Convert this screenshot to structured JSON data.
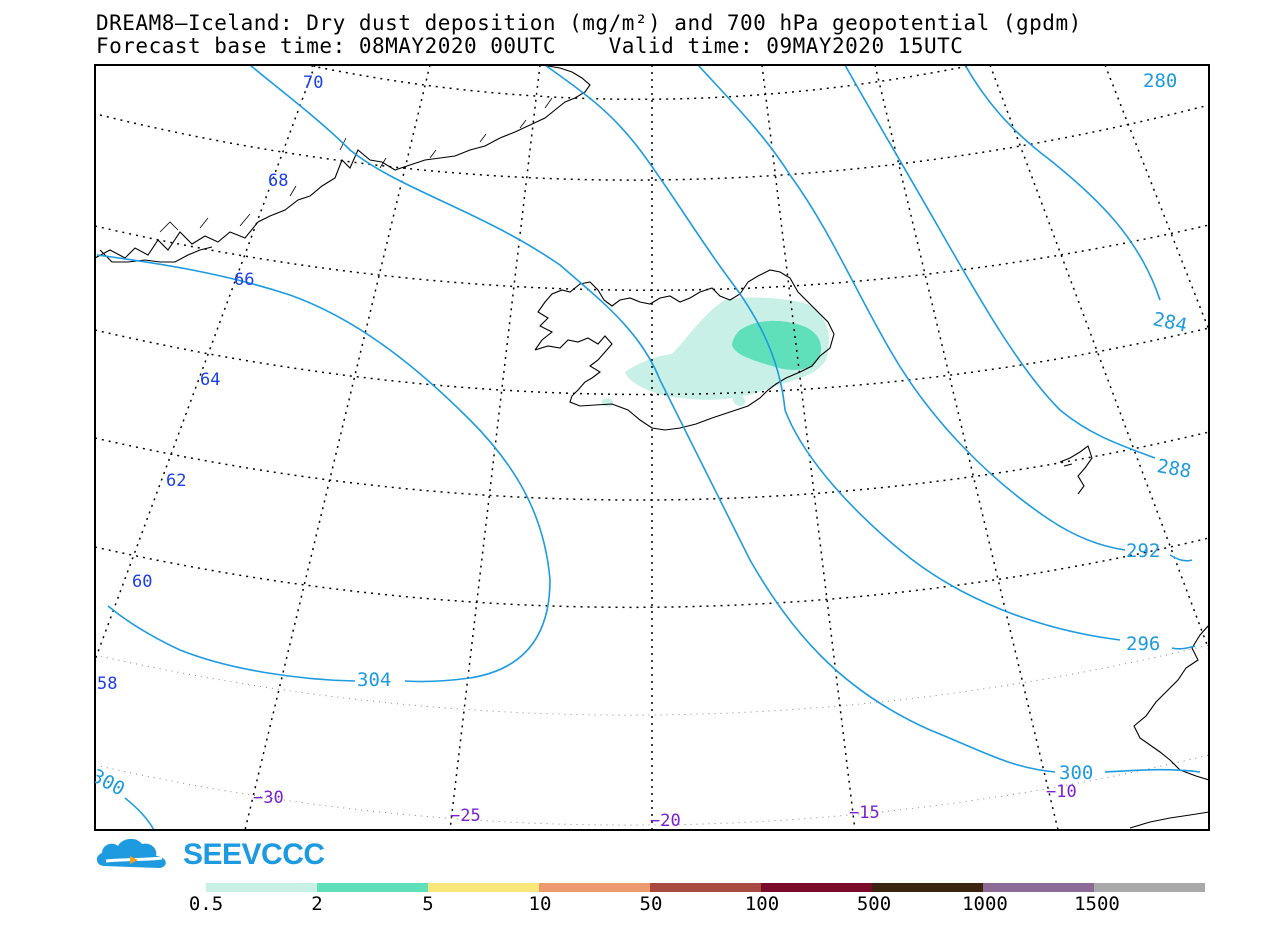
{
  "title": {
    "line1": "DREAM8—Iceland: Dry dust deposition (mg/m²) and 700 hPa geopotential (gpdm)",
    "line2": "Forecast base time: 08MAY2020 00UTC    Valid time: 09MAY2020 15UTC"
  },
  "map": {
    "region": "Iceland",
    "field_shaded": "Dry dust deposition (mg/m²)",
    "field_contoured": "700 hPa geopotential (gpdm)",
    "contour_color": "#1e9be0",
    "contour_labels": [
      "280",
      "284",
      "288",
      "292",
      "296",
      "300",
      "304",
      "300"
    ],
    "latitude_labels": [
      "70",
      "68",
      "66",
      "64",
      "62",
      "60",
      "58"
    ],
    "latitude_label_color": "#1a3ee8",
    "longitude_labels": [
      "−30",
      "−25",
      "−20",
      "−15",
      "−10"
    ],
    "longitude_label_color": "#7a1fd0"
  },
  "logo": {
    "text": "SEEVCCC",
    "icon": "cloud-icon",
    "color": "#1e9be0"
  },
  "colorbar": {
    "colors": [
      "#c8f0e6",
      "#5fe0bb",
      "#f9e77a",
      "#ec9a6e",
      "#a84a40",
      "#7a0a2a",
      "#3d2410",
      "#8c6a96",
      "#a9a9a9"
    ],
    "labels": [
      "0.5",
      "2",
      "5",
      "10",
      "50",
      "100",
      "500",
      "1000",
      "1500"
    ]
  }
}
